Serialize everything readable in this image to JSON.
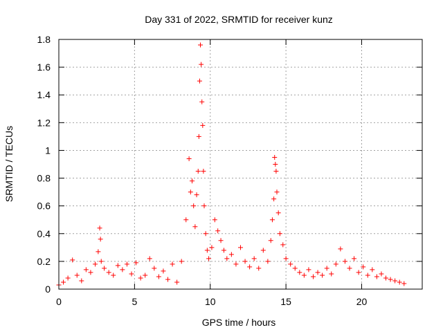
{
  "chart_data": {
    "type": "scatter",
    "title": "Day 331 of 2022, SRMTID for receiver kunz",
    "xlabel": "GPS time / hours",
    "ylabel": "SRMTID / TECUs",
    "xlim": [
      0,
      24
    ],
    "ylim": [
      0,
      1.8
    ],
    "x_ticks": [
      0,
      5,
      10,
      15,
      20
    ],
    "x_tick_labels": [
      "0",
      "5",
      "10",
      "15",
      "20"
    ],
    "y_ticks": [
      0,
      0.2,
      0.4,
      0.6,
      0.8,
      1.0,
      1.2,
      1.4,
      1.6,
      1.8
    ],
    "y_tick_labels": [
      "0",
      "0.2",
      "0.4",
      "0.6",
      "0.8",
      "1",
      "1.2",
      "1.4",
      "1.6",
      "1.8"
    ],
    "grid": true,
    "marker": "+",
    "color": "#ff0000",
    "series": [
      {
        "name": "SRMTID",
        "x": [
          0.0,
          0.3,
          0.6,
          0.9,
          1.2,
          1.5,
          1.8,
          2.1,
          2.4,
          2.6,
          2.7,
          2.75,
          2.8,
          3.0,
          3.3,
          3.6,
          3.9,
          4.2,
          4.5,
          4.8,
          5.1,
          5.4,
          5.7,
          6.0,
          6.3,
          6.6,
          6.9,
          7.2,
          7.5,
          7.8,
          8.1,
          8.4,
          8.6,
          8.7,
          8.8,
          8.9,
          9.0,
          9.1,
          9.2,
          9.25,
          9.3,
          9.35,
          9.4,
          9.45,
          9.5,
          9.55,
          9.6,
          9.7,
          9.8,
          9.9,
          10.1,
          10.3,
          10.5,
          10.7,
          10.9,
          11.1,
          11.4,
          11.7,
          12.0,
          12.3,
          12.6,
          12.9,
          13.2,
          13.5,
          13.8,
          14.0,
          14.1,
          14.2,
          14.25,
          14.3,
          14.35,
          14.4,
          14.5,
          14.6,
          14.8,
          15.0,
          15.3,
          15.6,
          15.9,
          16.2,
          16.5,
          16.8,
          17.1,
          17.4,
          17.7,
          18.0,
          18.3,
          18.6,
          18.9,
          19.2,
          19.5,
          19.8,
          20.1,
          20.4,
          20.7,
          21.0,
          21.3,
          21.6,
          21.9,
          22.2,
          22.5,
          22.8
        ],
        "y": [
          0.03,
          0.05,
          0.08,
          0.21,
          0.1,
          0.06,
          0.14,
          0.12,
          0.18,
          0.27,
          0.44,
          0.36,
          0.2,
          0.15,
          0.12,
          0.1,
          0.17,
          0.14,
          0.18,
          0.11,
          0.19,
          0.08,
          0.1,
          0.22,
          0.15,
          0.09,
          0.13,
          0.07,
          0.18,
          0.05,
          0.2,
          0.5,
          0.94,
          0.7,
          0.78,
          0.6,
          0.45,
          0.68,
          0.85,
          1.1,
          1.5,
          1.76,
          1.62,
          1.35,
          1.18,
          0.85,
          0.6,
          0.4,
          0.28,
          0.22,
          0.3,
          0.5,
          0.42,
          0.35,
          0.28,
          0.22,
          0.25,
          0.18,
          0.3,
          0.2,
          0.16,
          0.22,
          0.15,
          0.28,
          0.2,
          0.35,
          0.5,
          0.65,
          0.95,
          0.9,
          0.85,
          0.7,
          0.55,
          0.4,
          0.32,
          0.22,
          0.18,
          0.15,
          0.12,
          0.1,
          0.14,
          0.09,
          0.12,
          0.1,
          0.15,
          0.11,
          0.18,
          0.29,
          0.2,
          0.15,
          0.22,
          0.12,
          0.16,
          0.1,
          0.14,
          0.09,
          0.11,
          0.08,
          0.07,
          0.06,
          0.05,
          0.04
        ]
      }
    ]
  }
}
